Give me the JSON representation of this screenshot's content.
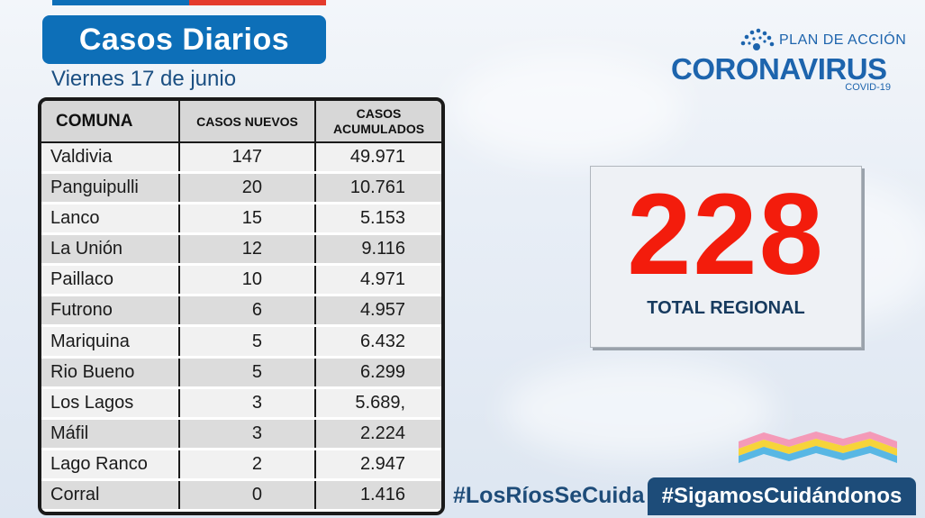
{
  "colors": {
    "title_bg": "#0d6fb8",
    "accent_red": "#f31c0c",
    "brand_blue": "#1d64ad",
    "hashtag_bg": "#1d4c79",
    "stripe": [
      "#0d6fb8",
      "#e43b2c"
    ]
  },
  "header": {
    "title": "Casos Diarios",
    "date": "Viernes 17 de junio"
  },
  "logo": {
    "line1": "PLAN DE ACCIÓN",
    "line2": "CORONAVIRUS",
    "line3": "COVID-19",
    "icon": "virus-sun-icon"
  },
  "table": {
    "headers": [
      "COMUNA",
      "CASOS NUEVOS",
      "CASOS ACUMULADOS"
    ],
    "rows": [
      [
        "Valdivia",
        "147",
        "49.971"
      ],
      [
        "Panguipulli",
        "20",
        "10.761"
      ],
      [
        "Lanco",
        "15",
        "5.153"
      ],
      [
        "La Unión",
        "12",
        "9.116"
      ],
      [
        "Paillaco",
        "10",
        "4.971"
      ],
      [
        "Futrono",
        "6",
        "4.957"
      ],
      [
        "Mariquina",
        "5",
        "6.432"
      ],
      [
        "Rio Bueno",
        "5",
        "6.299"
      ],
      [
        "Los Lagos",
        "3",
        "5.689,"
      ],
      [
        "Máfil",
        "3",
        "2.224"
      ],
      [
        "Lago Ranco",
        "2",
        "2.947"
      ],
      [
        "Corral",
        "0",
        "1.416"
      ]
    ]
  },
  "total": {
    "value": "228",
    "label": "TOTAL REGIONAL"
  },
  "footer": {
    "hashtag1": "#LosRíosSeCuida",
    "hashtag2": "#SigamosCuidándonos",
    "graphic": "colored-waves-icon"
  }
}
